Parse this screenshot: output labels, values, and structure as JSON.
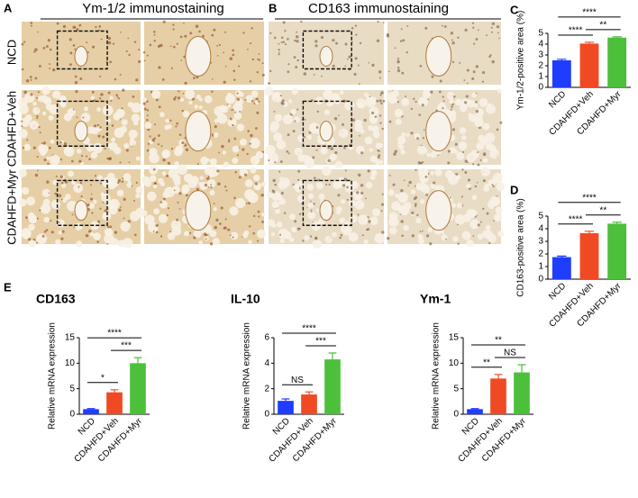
{
  "figure": {
    "panel_letters": [
      "A",
      "B",
      "C",
      "D",
      "E"
    ],
    "image_headers": [
      "Ym-1/2 immunostaining",
      "CD163  immunostaining"
    ],
    "row_labels": [
      "NCD",
      "CDAHFD+Veh",
      "CDAHFD+Myr"
    ]
  },
  "chart_data": [
    {
      "type": "bar",
      "ylabel": "Ym-1/2-positive area (%)",
      "categories": [
        "NCD",
        "CDAHFD+Veh",
        "CDAHFD+Myr"
      ],
      "values": [
        2.5,
        4.05,
        4.6
      ],
      "errors": [
        0.1,
        0.12,
        0.08
      ],
      "colors": [
        "#1f3dff",
        "#f04a24",
        "#4cc03a"
      ],
      "ylim": [
        0,
        5
      ],
      "yticks": [
        0,
        1,
        2,
        3,
        4,
        5
      ],
      "annotations": [
        {
          "label": "****",
          "between": [
            "NCD",
            "CDAHFD+Veh"
          ]
        },
        {
          "label": "**",
          "between": [
            "CDAHFD+Veh",
            "CDAHFD+Myr"
          ]
        },
        {
          "label": "****",
          "between": [
            "NCD",
            "CDAHFD+Myr"
          ]
        }
      ]
    },
    {
      "type": "bar",
      "ylabel": "CD163-positive area (%)",
      "categories": [
        "NCD",
        "CDAHFD+Veh",
        "CDAHFD+Myr"
      ],
      "values": [
        1.75,
        3.65,
        4.4
      ],
      "errors": [
        0.08,
        0.15,
        0.12
      ],
      "colors": [
        "#1f3dff",
        "#f04a24",
        "#4cc03a"
      ],
      "ylim": [
        0,
        5
      ],
      "yticks": [
        0,
        1,
        2,
        3,
        4,
        5
      ],
      "annotations": [
        {
          "label": "****",
          "between": [
            "NCD",
            "CDAHFD+Veh"
          ]
        },
        {
          "label": "**",
          "between": [
            "CDAHFD+Veh",
            "CDAHFD+Myr"
          ]
        },
        {
          "label": "****",
          "between": [
            "NCD",
            "CDAHFD+Myr"
          ]
        }
      ]
    },
    {
      "type": "bar",
      "title": "CD163",
      "ylabel": "Relative mRNA expression",
      "categories": [
        "NCD",
        "CDAHFD+Veh",
        "CDAHFD+Myr"
      ],
      "values": [
        1,
        4.3,
        10
      ],
      "errors": [
        0.1,
        0.5,
        1.1
      ],
      "colors": [
        "#1f3dff",
        "#f04a24",
        "#4cc03a"
      ],
      "ylim": [
        0,
        15
      ],
      "yticks": [
        0,
        5,
        10,
        15
      ],
      "annotations": [
        {
          "label": "*",
          "between": [
            "NCD",
            "CDAHFD+Veh"
          ]
        },
        {
          "label": "***",
          "between": [
            "CDAHFD+Veh",
            "CDAHFD+Myr"
          ]
        },
        {
          "label": "****",
          "between": [
            "NCD",
            "CDAHFD+Myr"
          ]
        }
      ]
    },
    {
      "type": "bar",
      "title": "IL-10",
      "ylabel": "Relative mRNA expression",
      "categories": [
        "NCD",
        "CDAHFD+Veh",
        "CDAHFD+Myr"
      ],
      "values": [
        1.05,
        1.55,
        4.3
      ],
      "errors": [
        0.15,
        0.2,
        0.5
      ],
      "colors": [
        "#1f3dff",
        "#f04a24",
        "#4cc03a"
      ],
      "ylim": [
        0,
        6
      ],
      "yticks": [
        0,
        2,
        4,
        6
      ],
      "annotations": [
        {
          "label": "NS",
          "between": [
            "NCD",
            "CDAHFD+Veh"
          ]
        },
        {
          "label": "***",
          "between": [
            "CDAHFD+Veh",
            "CDAHFD+Myr"
          ]
        },
        {
          "label": "****",
          "between": [
            "NCD",
            "CDAHFD+Myr"
          ]
        }
      ]
    },
    {
      "type": "bar",
      "title": "Ym-1",
      "ylabel": "Relative mRNA expression",
      "categories": [
        "NCD",
        "CDAHFD+Veh",
        "CDAHFD+Myr"
      ],
      "values": [
        1,
        7,
        8.2
      ],
      "errors": [
        0.1,
        0.8,
        1.5
      ],
      "colors": [
        "#1f3dff",
        "#f04a24",
        "#4cc03a"
      ],
      "ylim": [
        0,
        15
      ],
      "yticks": [
        0,
        5,
        10,
        15
      ],
      "annotations": [
        {
          "label": "**",
          "between": [
            "NCD",
            "CDAHFD+Veh"
          ]
        },
        {
          "label": "NS",
          "between": [
            "CDAHFD+Veh",
            "CDAHFD+Myr"
          ]
        },
        {
          "label": "**",
          "between": [
            "NCD",
            "CDAHFD+Myr"
          ]
        }
      ]
    }
  ]
}
